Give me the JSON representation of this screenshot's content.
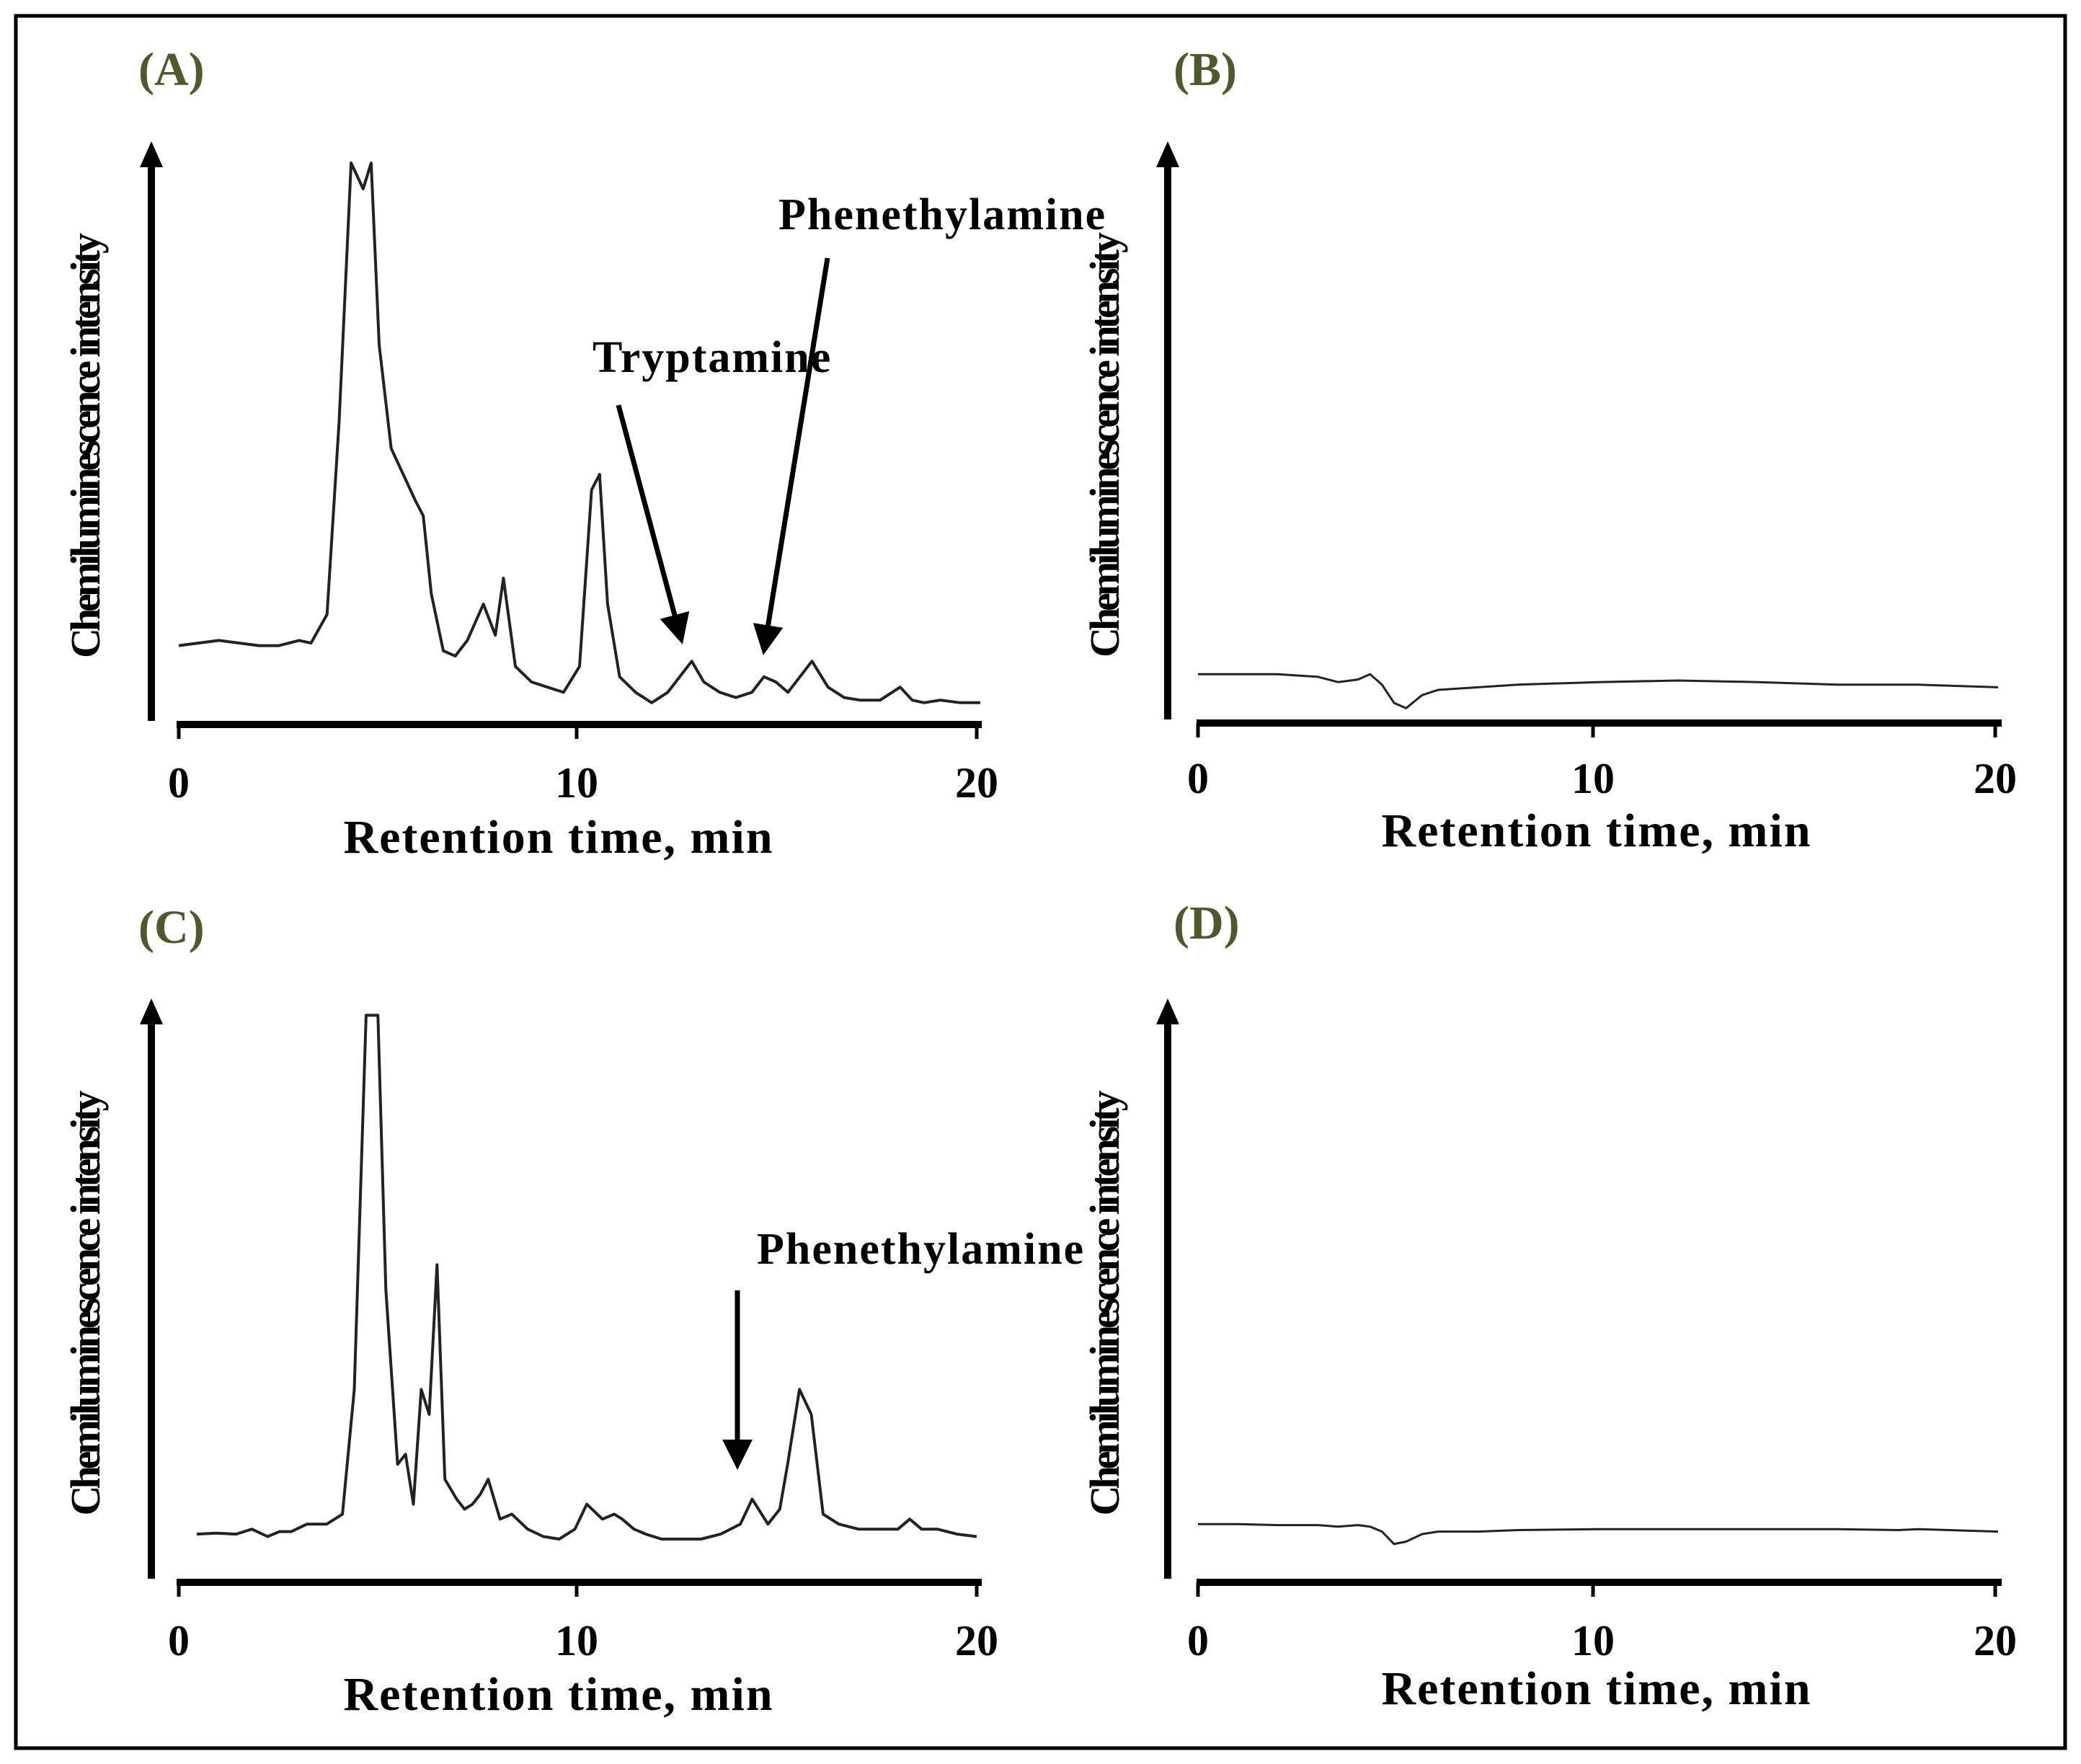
{
  "chart_data": [
    {
      "id": "A",
      "type": "line",
      "title": "(A)",
      "xlabel": "Retention time, min",
      "ylabel": "Chemiluminescence intensity",
      "xlim": [
        0,
        20
      ],
      "ylim": [
        0,
        100
      ],
      "xticks": [
        0,
        10,
        20
      ],
      "xtick_labels": [
        "0",
        "10",
        "20"
      ],
      "annotations": [
        {
          "text": "Tryptamine",
          "x": 12.8
        },
        {
          "text": "Phenethylamine",
          "x": 14.6
        }
      ],
      "series": [
        {
          "name": "A",
          "x": [
            0,
            0.5,
            1,
            1.5,
            2,
            2.5,
            3,
            3.3,
            3.7,
            4.0,
            4.3,
            4.6,
            4.8,
            5.0,
            5.3,
            5.6,
            5.9,
            6.1,
            6.3,
            6.6,
            6.9,
            7.2,
            7.6,
            7.9,
            8.1,
            8.4,
            8.8,
            9.2,
            9.6,
            10.0,
            10.3,
            10.5,
            10.7,
            11.0,
            11.4,
            11.8,
            12.2,
            12.5,
            12.8,
            13.1,
            13.5,
            13.9,
            14.3,
            14.6,
            14.9,
            15.2,
            15.5,
            15.8,
            16.2,
            16.6,
            17.0,
            17.5,
            18.0,
            18.3,
            18.6,
            19.0,
            19.5,
            20.0
          ],
          "y": [
            12,
            12.5,
            13,
            12.5,
            12,
            12,
            13,
            12.5,
            18,
            55,
            105,
            100,
            105,
            70,
            50,
            45,
            40,
            37,
            22,
            11,
            10,
            13,
            20,
            14,
            25,
            8,
            5,
            4,
            3,
            8,
            42,
            45,
            20,
            6,
            3,
            1,
            3,
            6,
            9,
            5,
            3,
            2,
            3,
            6,
            5,
            3,
            6,
            9,
            4,
            2,
            1.5,
            1.5,
            4,
            1.5,
            1,
            1.5,
            1,
            1
          ]
        }
      ]
    },
    {
      "id": "B",
      "type": "line",
      "title": "(B)",
      "xlabel": "Retention time, min",
      "ylabel": "Chemiluminescence intensity",
      "xlim": [
        0,
        20
      ],
      "ylim": [
        0,
        100
      ],
      "xticks": [
        0,
        10,
        20
      ],
      "xtick_labels": [
        "0",
        "10",
        "20"
      ],
      "series": [
        {
          "name": "B",
          "x": [
            0,
            1,
            2,
            3,
            3.5,
            4.0,
            4.3,
            4.6,
            4.9,
            5.2,
            5.6,
            6,
            7,
            8,
            10,
            12,
            14,
            16,
            18,
            20
          ],
          "y": [
            7,
            7,
            7,
            6.5,
            5.5,
            6,
            7,
            5,
            1.5,
            0.5,
            3,
            4,
            4.5,
            5,
            5.5,
            5.8,
            5.5,
            5,
            5,
            4.5
          ]
        }
      ]
    },
    {
      "id": "C",
      "type": "line",
      "title": "(C)",
      "xlabel": "Retention time, min",
      "ylabel": "Chemiluminescence intensity",
      "xlim": [
        0,
        20
      ],
      "ylim": [
        0,
        100
      ],
      "xticks": [
        0,
        10,
        20
      ],
      "xtick_labels": [
        "0",
        "10",
        "20"
      ],
      "annotations": [
        {
          "text": "Phenethylamine",
          "x": 14.0
        }
      ],
      "series": [
        {
          "name": "C",
          "x": [
            0.2,
            0.7,
            1.2,
            1.6,
            2.0,
            2.3,
            2.6,
            3.0,
            3.5,
            3.9,
            4.2,
            4.5,
            4.8,
            5.0,
            5.3,
            5.5,
            5.7,
            5.9,
            6.1,
            6.3,
            6.5,
            6.8,
            7.0,
            7.2,
            7.4,
            7.6,
            7.9,
            8.2,
            8.6,
            9.0,
            9.4,
            9.8,
            10.1,
            10.5,
            10.8,
            11.0,
            11.3,
            11.6,
            12.0,
            12.5,
            13.0,
            13.5,
            14.0,
            14.3,
            14.7,
            15.0,
            15.2,
            15.5,
            15.8,
            16.1,
            16.5,
            17.0,
            17.5,
            18.0,
            18.3,
            18.6,
            19.0,
            19.5,
            20.0
          ],
          "y": [
            1,
            1.2,
            1,
            2,
            0.5,
            1.5,
            1.5,
            3,
            3,
            5,
            30,
            105,
            105,
            50,
            15,
            17,
            7,
            30,
            25,
            55,
            12,
            8,
            6,
            7,
            9,
            12,
            4,
            5,
            2,
            0.5,
            0,
            2,
            7,
            4,
            5,
            4,
            2,
            1,
            0,
            0,
            0,
            1,
            3,
            8,
            3,
            6,
            15,
            30,
            25,
            5,
            3,
            2,
            2,
            2,
            4,
            2,
            2,
            1,
            0.5
          ]
        }
      ]
    },
    {
      "id": "D",
      "type": "line",
      "title": "(D)",
      "xlabel": "Retention time, min",
      "ylabel": "Chemiluminescence intensity",
      "xlim": [
        0,
        20
      ],
      "ylim": [
        0,
        100
      ],
      "xticks": [
        0,
        10,
        20
      ],
      "xtick_labels": [
        "0",
        "10",
        "20"
      ],
      "series": [
        {
          "name": "D",
          "x": [
            0,
            1,
            2,
            3,
            3.5,
            4.0,
            4.3,
            4.6,
            4.9,
            5.2,
            5.6,
            6,
            7,
            8,
            10,
            12,
            14,
            16,
            17.5,
            18,
            20
          ],
          "y": [
            3,
            3,
            2.8,
            2.8,
            2.5,
            2.8,
            2.5,
            1.5,
            -1,
            -0.5,
            1,
            1.5,
            1.5,
            1.8,
            2,
            2,
            2,
            2,
            1.8,
            2,
            1.5
          ]
        }
      ]
    }
  ]
}
